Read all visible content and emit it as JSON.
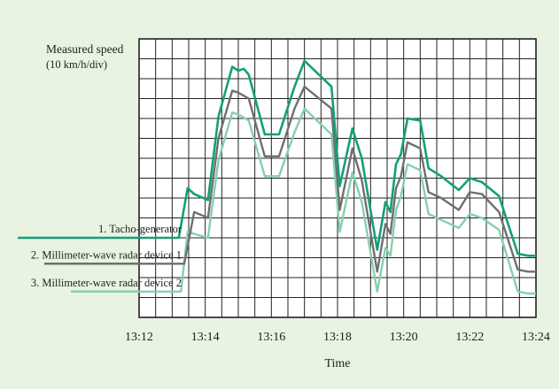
{
  "colors": {
    "background": "#e8f3e1",
    "plot_background": "#ffffff",
    "grid": "#222222",
    "series": [
      "#13a07a",
      "#6f6f6f",
      "#86cfae"
    ]
  },
  "chart_data": {
    "type": "line",
    "ylabel": "Measured speed",
    "ylabel_unit": "(10 km/h/div)",
    "xlabel": "Time",
    "x_ticks": [
      "13:12",
      "13:14",
      "13:16",
      "13:18",
      "13:20",
      "13:22",
      "13:24"
    ],
    "x_range": [
      "13:12",
      "13:24"
    ],
    "y_range": [
      0,
      14
    ],
    "y_unit": "div",
    "grid": true,
    "legend_placement": "left, inline labels",
    "series": [
      {
        "name": "1. Tacho-generator",
        "x": [
          "13:12:00",
          "13:13:12",
          "13:13:28",
          "13:13:40",
          "13:14:05",
          "13:14:24",
          "13:14:49",
          "13:15:00",
          "13:15:10",
          "13:15:19",
          "13:15:48",
          "13:16:14",
          "13:16:42",
          "13:17:00",
          "13:17:49",
          "13:18:04",
          "13:18:27",
          "13:18:44",
          "13:19:12",
          "13:19:27",
          "13:19:36",
          "13:19:46",
          "13:19:55",
          "13:20:07",
          "13:20:30",
          "13:20:45",
          "13:21:08",
          "13:21:40",
          "13:22:00",
          "13:22:22",
          "13:22:53",
          "13:23:27",
          "13:23:46",
          "13:24:00"
        ],
        "values": [
          4.0,
          4.0,
          6.5,
          6.2,
          5.9,
          10.1,
          12.6,
          12.4,
          12.5,
          12.2,
          9.2,
          9.2,
          11.6,
          12.9,
          11.6,
          6.6,
          9.5,
          8.0,
          3.4,
          5.8,
          5.3,
          7.7,
          8.2,
          10.0,
          9.9,
          7.5,
          7.1,
          6.4,
          7.0,
          6.8,
          6.1,
          3.2,
          3.1,
          3.1
        ]
      },
      {
        "name": "2. Millimeter-wave radar device 1",
        "x": [
          "13:12:00",
          "13:13:22",
          "13:13:40",
          "13:14:05",
          "13:14:24",
          "13:14:49",
          "13:15:00",
          "13:15:19",
          "13:15:48",
          "13:16:14",
          "13:16:42",
          "13:17:00",
          "13:17:49",
          "13:18:04",
          "13:18:27",
          "13:18:44",
          "13:19:12",
          "13:19:27",
          "13:19:36",
          "13:19:46",
          "13:19:55",
          "13:20:07",
          "13:20:30",
          "13:20:45",
          "13:21:08",
          "13:21:40",
          "13:22:00",
          "13:22:22",
          "13:22:53",
          "13:23:27",
          "13:23:46",
          "13:24:00"
        ],
        "values": [
          2.7,
          2.7,
          5.3,
          5.0,
          9.0,
          11.4,
          11.3,
          11.0,
          8.1,
          8.1,
          10.5,
          11.6,
          10.5,
          5.4,
          8.5,
          6.9,
          2.3,
          4.7,
          4.2,
          6.5,
          7.1,
          8.8,
          8.5,
          6.3,
          6.0,
          5.4,
          6.3,
          6.2,
          5.3,
          2.4,
          2.3,
          2.3
        ]
      },
      {
        "name": "3. Millimeter-wave radar device 2",
        "x": [
          "13:12:00",
          "13:13:16",
          "13:13:28",
          "13:13:40",
          "13:14:05",
          "13:14:24",
          "13:14:49",
          "13:15:00",
          "13:15:19",
          "13:15:48",
          "13:16:14",
          "13:16:42",
          "13:17:00",
          "13:17:49",
          "13:18:04",
          "13:18:27",
          "13:18:44",
          "13:19:12",
          "13:19:27",
          "13:19:36",
          "13:19:46",
          "13:19:55",
          "13:20:07",
          "13:20:30",
          "13:20:45",
          "13:21:08",
          "13:21:40",
          "13:22:00",
          "13:22:22",
          "13:22:53",
          "13:23:27",
          "13:23:46",
          "13:24:00"
        ],
        "values": [
          1.3,
          1.3,
          4.3,
          4.2,
          4.0,
          7.9,
          10.3,
          10.2,
          9.9,
          7.1,
          7.1,
          9.3,
          10.5,
          9.2,
          4.3,
          7.3,
          5.8,
          1.3,
          3.5,
          3.1,
          5.4,
          6.1,
          7.7,
          7.4,
          5.2,
          4.9,
          4.5,
          5.2,
          5.0,
          4.4,
          1.3,
          1.2,
          1.2
        ]
      }
    ]
  }
}
